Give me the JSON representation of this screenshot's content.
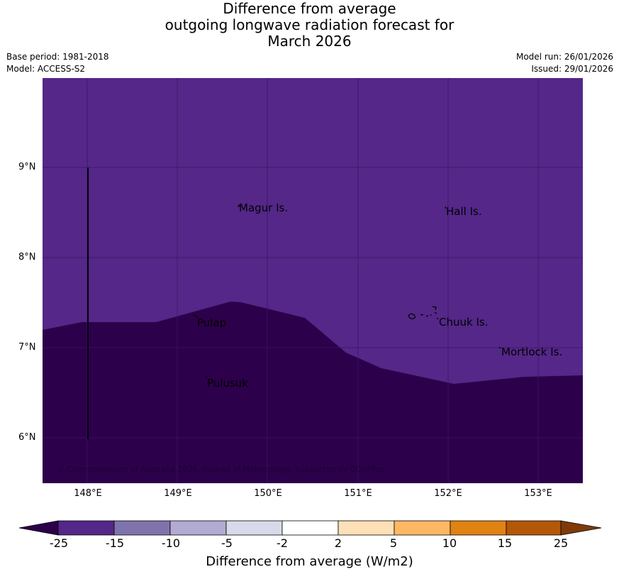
{
  "title": {
    "line1": "Difference from average",
    "line2": "outgoing longwave radiation forecast for",
    "line3": "March 2026"
  },
  "meta": {
    "base_period": "Base period: 1981-2018",
    "model": "Model: ACCESS-S2",
    "model_run": "Model run: 26/01/2026",
    "issued": "Issued: 29/01/2026"
  },
  "map": {
    "latitude_labels": [
      "9°N",
      "8°N",
      "7°N",
      "6°N"
    ],
    "longitude_labels": [
      "148°E",
      "149°E",
      "150°E",
      "151°E",
      "152°E",
      "153°E"
    ],
    "places": [
      "Magur Is.",
      "Hall Is.",
      "Pulap",
      "Chuuk Is.",
      "Mortlock Is.",
      "Pulusuk"
    ],
    "copyright": "© Commonwealth of Australia 2026, Bureau of Meteorology. Supported by COSPPac",
    "colors": {
      "upper_region": "#542788",
      "lower_region": "#2d004b"
    }
  },
  "colorbar": {
    "title": "Difference from average (W/m2)",
    "tick_labels": [
      "-25",
      "-15",
      "-10",
      "-5",
      "-2",
      "2",
      "5",
      "10",
      "15",
      "25"
    ],
    "colors": [
      "#2d004b",
      "#542788",
      "#8073ac",
      "#b2abd2",
      "#d8daeb",
      "#ffffff",
      "#fee0b6",
      "#fdb863",
      "#e08214",
      "#b35806",
      "#7f3b08"
    ]
  }
}
